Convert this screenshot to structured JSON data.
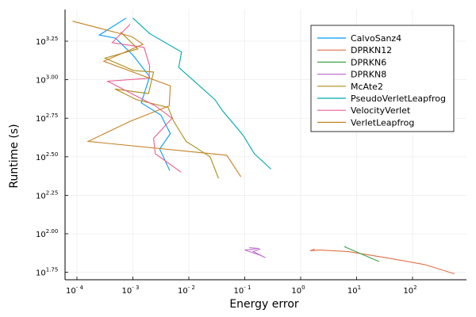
{
  "chart_data": {
    "type": "line",
    "title": "",
    "xlabel": "Energy error",
    "ylabel": "Runtime (s)",
    "xscale": "log10",
    "yscale": "log10",
    "xlim_log10": [
      -4.2,
      2.75
    ],
    "ylim_log10": [
      1.7,
      3.44
    ],
    "grid": true,
    "legend_position": "top-right",
    "xticks": [
      {
        "exp": -4,
        "base": "10",
        "sup": "- 4"
      },
      {
        "exp": -3,
        "base": "10",
        "sup": "- 3"
      },
      {
        "exp": -2,
        "base": "10",
        "sup": "- 2"
      },
      {
        "exp": -1,
        "base": "10",
        "sup": "- 1"
      },
      {
        "exp": 0,
        "base": "10",
        "sup": "0"
      },
      {
        "exp": 1,
        "base": "10",
        "sup": "1"
      },
      {
        "exp": 2,
        "base": "10",
        "sup": "2"
      }
    ],
    "yticks": [
      {
        "exp": 1.75,
        "base": "10",
        "sup": "1.75"
      },
      {
        "exp": 2.0,
        "base": "10",
        "sup": "2.00"
      },
      {
        "exp": 2.25,
        "base": "10",
        "sup": "2.25"
      },
      {
        "exp": 2.5,
        "base": "10",
        "sup": "2.50"
      },
      {
        "exp": 2.75,
        "base": "10",
        "sup": "2.75"
      },
      {
        "exp": 3.0,
        "base": "10",
        "sup": "3.00"
      },
      {
        "exp": 3.25,
        "base": "10",
        "sup": "3.25"
      }
    ],
    "series": [
      {
        "name": "CalvoSanz4",
        "color": "#009AFA",
        "points_log10": [
          [
            -3.12,
            3.4
          ],
          [
            -3.6,
            3.29
          ],
          [
            -3.31,
            3.27
          ],
          [
            -3.0,
            3.16
          ],
          [
            -2.7,
            3.02
          ],
          [
            -2.85,
            2.85
          ],
          [
            -2.5,
            2.77
          ],
          [
            -2.33,
            2.65
          ],
          [
            -2.52,
            2.55
          ],
          [
            -2.34,
            2.41
          ]
        ]
      },
      {
        "name": "DPRKN12",
        "color": "#E36F47",
        "points_log10": [
          [
            0.25,
            1.9
          ],
          [
            0.17,
            1.89
          ],
          [
            0.33,
            1.895
          ],
          [
            0.85,
            1.885
          ],
          [
            1.6,
            1.84
          ],
          [
            2.22,
            1.8
          ],
          [
            2.75,
            1.74
          ]
        ]
      },
      {
        "name": "DPRKN6",
        "color": "#3EA44E",
        "points_log10": [
          [
            0.8,
            1.92
          ],
          [
            0.79,
            1.915
          ],
          [
            1.4,
            1.82
          ]
        ]
      },
      {
        "name": "DPRKN8",
        "color": "#C271D2",
        "points_log10": [
          [
            -0.92,
            1.91
          ],
          [
            -0.74,
            1.905
          ],
          [
            -1.0,
            1.895
          ],
          [
            -0.72,
            1.86
          ],
          [
            -0.63,
            1.845
          ],
          [
            -0.85,
            1.885
          ],
          [
            -0.72,
            1.9
          ]
        ]
      },
      {
        "name": "McAte2",
        "color": "#AC8D18",
        "points_log10": [
          [
            -3.22,
            3.31
          ],
          [
            -2.91,
            3.2
          ],
          [
            -3.5,
            3.14
          ],
          [
            -2.99,
            3.06
          ],
          [
            -2.63,
            3.05
          ],
          [
            -2.72,
            2.91
          ],
          [
            -3.32,
            2.94
          ],
          [
            -2.93,
            2.87
          ],
          [
            -2.37,
            2.82
          ],
          [
            -2.27,
            2.73
          ],
          [
            -2.05,
            2.6
          ],
          [
            -1.62,
            2.5
          ],
          [
            -1.47,
            2.36
          ]
        ]
      },
      {
        "name": "PseudoVerletLeapfrog",
        "color": "#00A9AD",
        "points_log10": [
          [
            -3.0,
            3.4
          ],
          [
            -2.7,
            3.3
          ],
          [
            -2.13,
            3.18
          ],
          [
            -2.18,
            3.08
          ],
          [
            -1.53,
            2.87
          ],
          [
            -1.4,
            2.8
          ],
          [
            -1.03,
            2.64
          ],
          [
            -0.83,
            2.52
          ],
          [
            -0.53,
            2.42
          ]
        ]
      },
      {
        "name": "VelocityVerlet",
        "color": "#ED5D92",
        "points_log10": [
          [
            -3.05,
            3.36
          ],
          [
            -3.37,
            3.24
          ],
          [
            -2.8,
            3.21
          ],
          [
            -2.7,
            3.09
          ],
          [
            -2.71,
            3.01
          ],
          [
            -3.45,
            2.99
          ],
          [
            -2.6,
            2.83
          ],
          [
            -2.3,
            2.75
          ],
          [
            -2.63,
            2.62
          ],
          [
            -2.6,
            2.52
          ],
          [
            -2.14,
            2.4
          ]
        ]
      },
      {
        "name": "VerletLeapfrog",
        "color": "#C68125",
        "points_log10": [
          [
            -4.08,
            3.38
          ],
          [
            -3.02,
            3.28
          ],
          [
            -2.82,
            3.23
          ],
          [
            -3.52,
            3.12
          ],
          [
            -2.33,
            2.96
          ],
          [
            -2.35,
            2.83
          ],
          [
            -3.05,
            2.73
          ],
          [
            -3.8,
            2.6
          ],
          [
            -1.32,
            2.51
          ],
          [
            -1.07,
            2.37
          ]
        ]
      }
    ]
  }
}
